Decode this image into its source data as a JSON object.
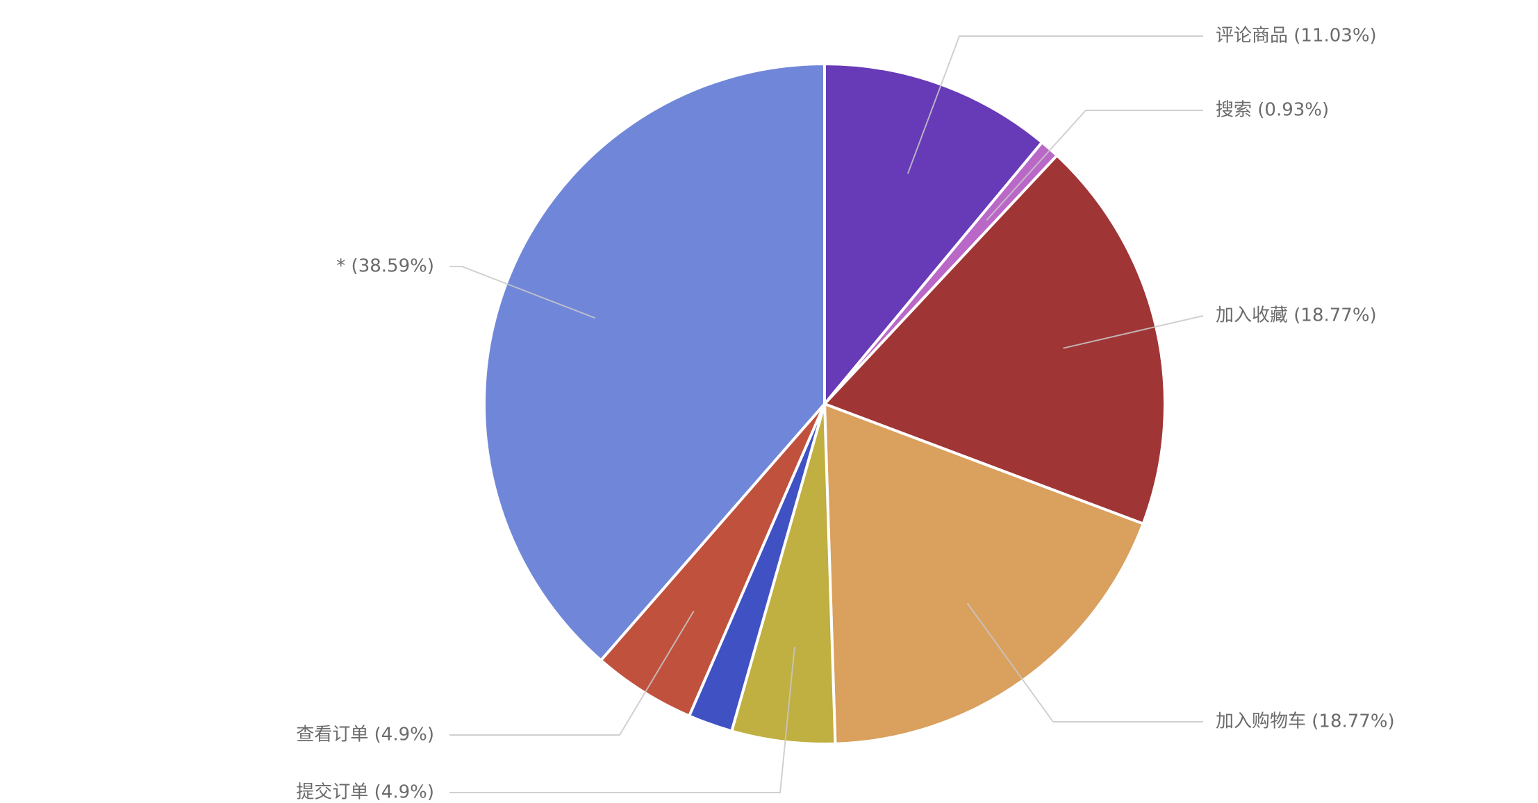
{
  "chart_data": {
    "type": "pie",
    "start_angle_deg": 0,
    "direction": "clockwise",
    "legend": "none",
    "slices": [
      {
        "name": "评论商品",
        "value": 11.03,
        "label": "评论商品 (11.03%)",
        "color": "#673ab7"
      },
      {
        "name": "搜索",
        "value": 0.93,
        "label": "搜索 (0.93%)",
        "color": "#ba68c8"
      },
      {
        "name": "加入收藏",
        "value": 18.77,
        "label": "加入收藏 (18.77%)",
        "color": "#a03535"
      },
      {
        "name": "加入购物车",
        "value": 18.77,
        "label": "加入购物车 (18.77%)",
        "color": "#d9a05e"
      },
      {
        "name": "提交订单",
        "value": 4.9,
        "label": "提交订单 (4.9%)",
        "color": "#c0af41"
      },
      {
        "name": "",
        "value": 2.11,
        "label": "",
        "color": "#3f51c3"
      },
      {
        "name": "查看订单",
        "value": 4.9,
        "label": "查看订单 (4.9%)",
        "color": "#c0513d"
      },
      {
        "name": "*",
        "value": 38.59,
        "label": "* (38.59%)",
        "color": "#7087d9"
      }
    ]
  }
}
